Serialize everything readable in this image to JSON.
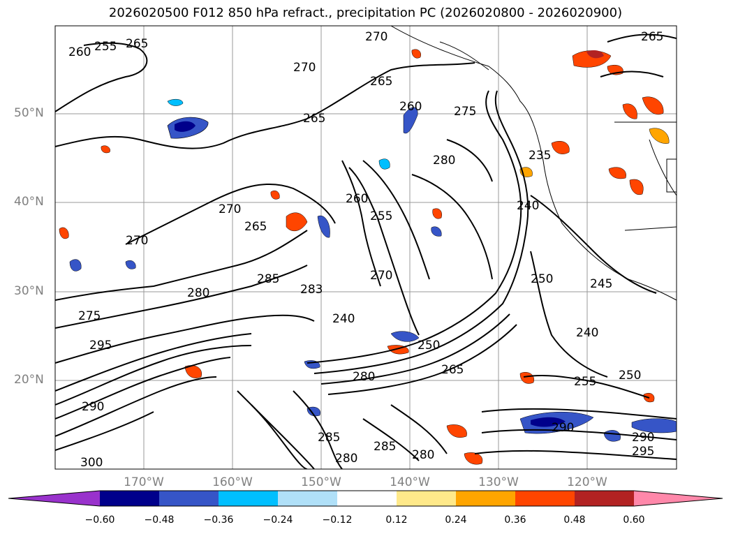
{
  "title": "2026020500 F012 850 hPa refract., precipitation PC (2026020800 - 2026020900)",
  "lat_labels": [
    "50°N",
    "40°N",
    "30°N",
    "20°N"
  ],
  "lon_labels": [
    "170°W",
    "160°W",
    "150°W",
    "140°W",
    "130°W",
    "120°W"
  ],
  "contour_labels": [
    "255",
    "265",
    "260",
    "270",
    "270",
    "265",
    "260",
    "275",
    "265",
    "265",
    "280",
    "235",
    "240",
    "270",
    "265",
    "260",
    "255",
    "270",
    "285",
    "280",
    "275",
    "295",
    "290",
    "283",
    "250",
    "245",
    "240",
    "250",
    "265",
    "240",
    "255",
    "250",
    "280",
    "280",
    "285",
    "280",
    "290",
    "295",
    "290",
    "300",
    "285",
    "270"
  ],
  "colorbar": {
    "ticks": [
      "−0.60",
      "−0.48",
      "−0.36",
      "−0.24",
      "−0.12",
      "0.12",
      "0.24",
      "0.36",
      "0.48",
      "0.60"
    ],
    "colors": [
      "#9932cc",
      "#00008b",
      "#3655c7",
      "#00bfff",
      "#b0e0f8",
      "#ffffff",
      "#ffe98a",
      "#ffa500",
      "#ff4500",
      "#b22222",
      "#ff88aa"
    ]
  }
}
